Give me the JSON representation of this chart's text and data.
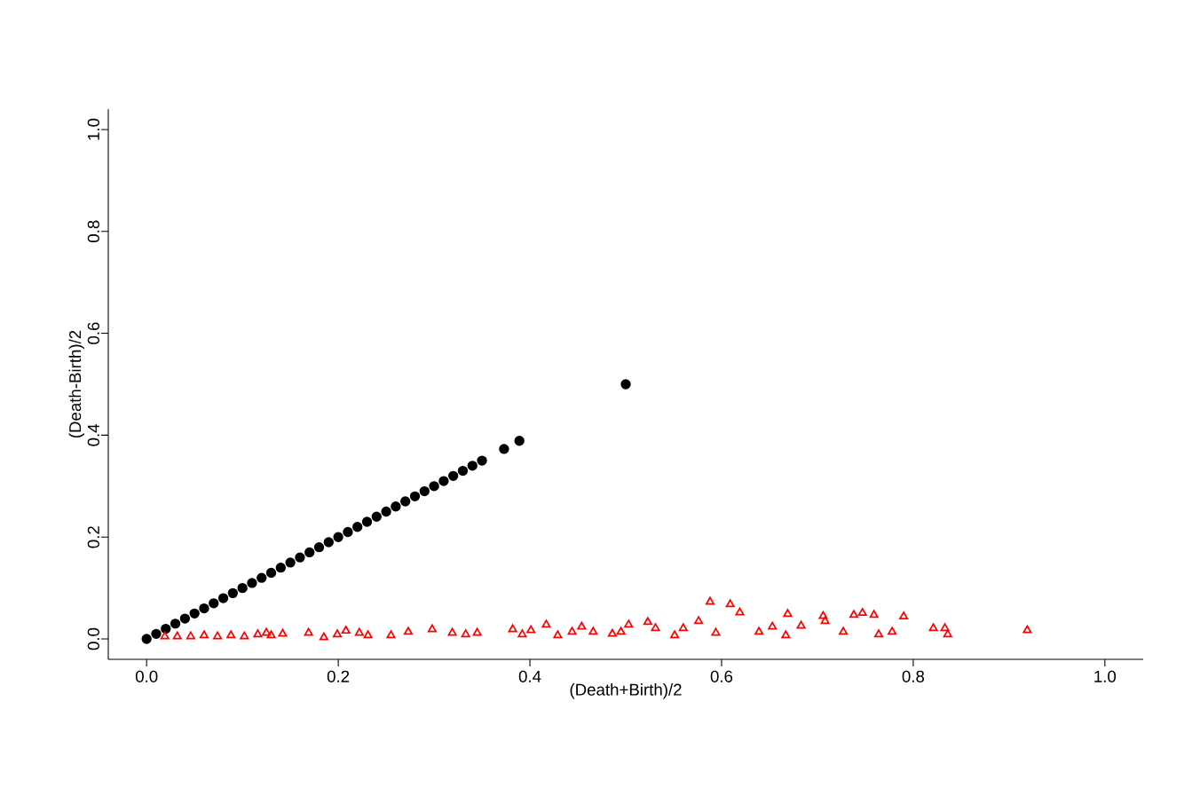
{
  "chart_data": {
    "type": "scatter",
    "xlabel": "(Death+Birth)/2",
    "ylabel": "(Death-Birth)/2",
    "xlim": [
      -0.04,
      1.04
    ],
    "ylim": [
      -0.04,
      1.04
    ],
    "xticks": [
      {
        "value": 0,
        "label": "0.0"
      },
      0.2,
      0.4,
      0.6,
      0.8,
      {
        "value": 1,
        "label": "1.0"
      }
    ],
    "yticks": [
      {
        "value": 0,
        "label": "0.0"
      },
      0.2,
      0.4,
      0.6,
      0.8,
      {
        "value": 1,
        "label": "1.0"
      }
    ],
    "series": [
      {
        "color": "#000000",
        "marker": "circle",
        "x": [
          0,
          0.01,
          0.02,
          0.03,
          0.04,
          0.05,
          0.06,
          0.07,
          0.08,
          0.09,
          0.1,
          0.11,
          0.12,
          0.13,
          0.14,
          0.15,
          0.16,
          0.17,
          0.18,
          0.19,
          0.2,
          0.21,
          0.22,
          0.23,
          0.24,
          0.25,
          0.26,
          0.27,
          0.28,
          0.29,
          0.3,
          0.31,
          0.32,
          0.33,
          0.34,
          0.35,
          0.373,
          0.389,
          0.5
        ],
        "values": [
          0,
          0.01,
          0.02,
          0.03,
          0.04,
          0.05,
          0.06,
          0.07,
          0.08,
          0.09,
          0.1,
          0.11,
          0.12,
          0.13,
          0.14,
          0.15,
          0.16,
          0.17,
          0.18,
          0.19,
          0.2,
          0.21,
          0.22,
          0.23,
          0.24,
          0.25,
          0.26,
          0.27,
          0.28,
          0.29,
          0.3,
          0.31,
          0.32,
          0.33,
          0.34,
          0.35,
          0.373,
          0.389,
          0.5
        ]
      },
      {
        "color": "#ff0000",
        "marker": "triangle",
        "x": [
          0.019,
          0.032,
          0.046,
          0.06,
          0.074,
          0.088,
          0.102,
          0.116,
          0.125,
          0.13,
          0.142,
          0.169,
          0.185,
          0.199,
          0.208,
          0.222,
          0.231,
          0.255,
          0.273,
          0.298,
          0.319,
          0.333,
          0.345,
          0.382,
          0.392,
          0.401,
          0.417,
          0.429,
          0.444,
          0.454,
          0.466,
          0.486,
          0.495,
          0.503,
          0.523,
          0.531,
          0.551,
          0.56,
          0.576,
          0.588,
          0.594,
          0.609,
          0.619,
          0.639,
          0.653,
          0.669,
          0.667,
          0.683,
          0.706,
          0.708,
          0.727,
          0.738,
          0.747,
          0.759,
          0.764,
          0.778,
          0.79,
          0.821,
          0.833,
          0.836,
          0.919
        ],
        "values": [
          0.005,
          0.005,
          0.005,
          0.007,
          0.005,
          0.007,
          0.005,
          0.009,
          0.012,
          0.007,
          0.01,
          0.012,
          0.003,
          0.009,
          0.016,
          0.012,
          0.007,
          0.007,
          0.014,
          0.019,
          0.012,
          0.009,
          0.012,
          0.019,
          0.009,
          0.017,
          0.028,
          0.007,
          0.014,
          0.024,
          0.014,
          0.01,
          0.014,
          0.028,
          0.033,
          0.021,
          0.007,
          0.021,
          0.035,
          0.073,
          0.012,
          0.068,
          0.052,
          0.014,
          0.024,
          0.049,
          0.007,
          0.026,
          0.045,
          0.035,
          0.014,
          0.047,
          0.051,
          0.047,
          0.009,
          0.014,
          0.044,
          0.021,
          0.021,
          0.009,
          0.017
        ]
      }
    ]
  }
}
